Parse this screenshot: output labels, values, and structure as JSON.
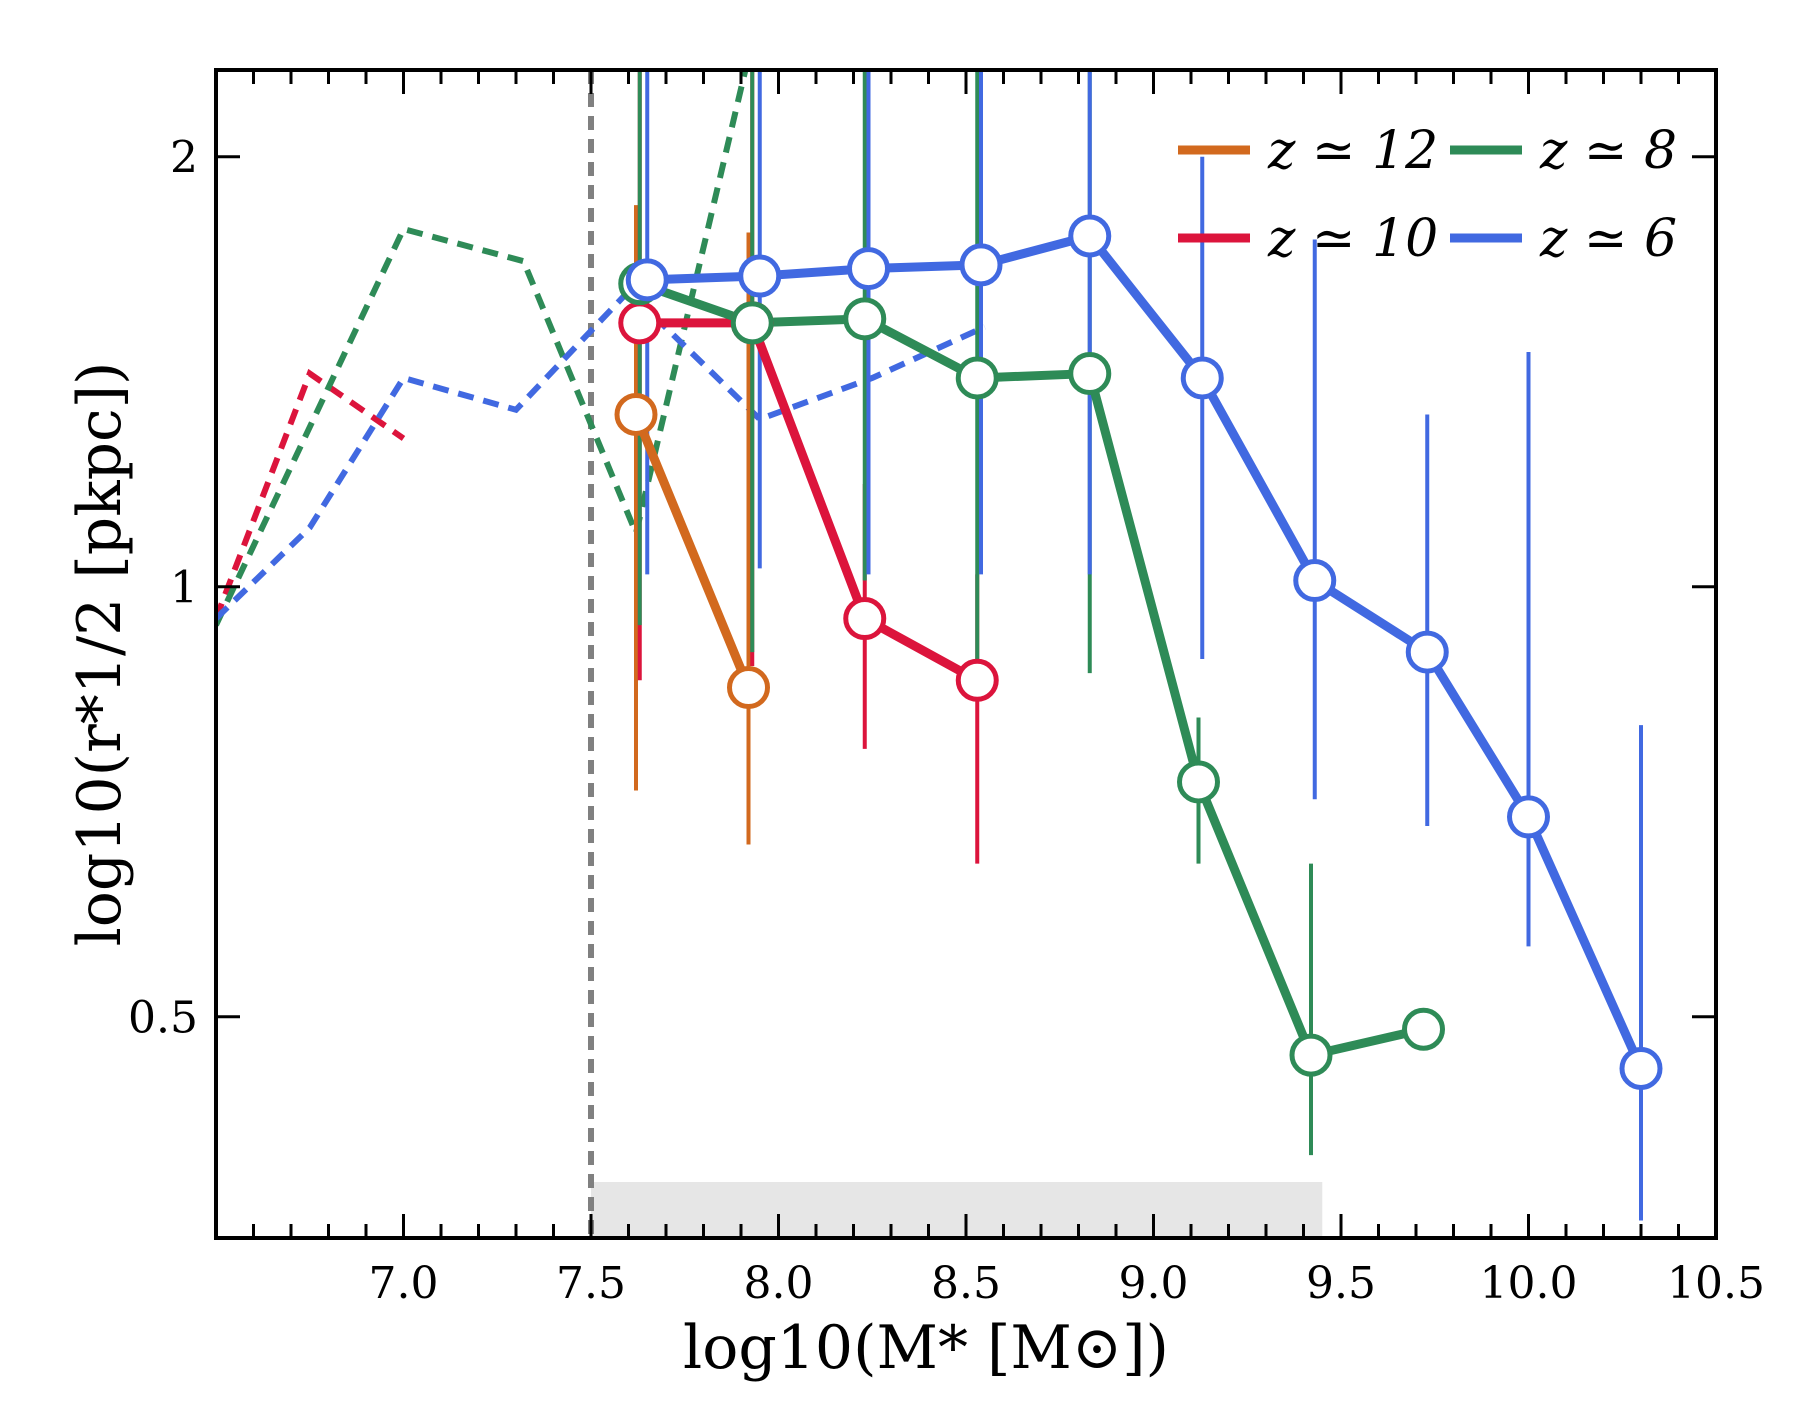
{
  "chart_data": {
    "type": "line",
    "xlabel": "log10(M* [M⊙])",
    "ylabel": "log10(r*1/2 [pkpc])",
    "xlim": [
      6.5,
      10.5
    ],
    "ylim": [
      0.35,
      2.3
    ],
    "y_scale": "log",
    "x_tick_labels": [
      "7.0",
      "7.5",
      "8.0",
      "8.5",
      "9.0",
      "9.5",
      "10.0",
      "10.5"
    ],
    "y_tick_labels": [
      "0.5",
      "1",
      "2"
    ],
    "resolution_limit_x": 7.5,
    "shaded_band": {
      "x_start": 7.5,
      "x_end": 9.45
    },
    "series": [
      {
        "name": "z ≃ 12",
        "color": "#d2691e",
        "x": [
          7.62,
          7.92
        ],
        "y": [
          1.32,
          0.85
        ],
        "yerr_low": [
          0.72,
          0.66
        ],
        "yerr_high": [
          1.85,
          1.77
        ],
        "dashed_x": [],
        "dashed_y": []
      },
      {
        "name": "z ≃ 10",
        "color": "#dc143c",
        "x": [
          7.63,
          7.93,
          8.23,
          8.53
        ],
        "y": [
          1.53,
          1.53,
          0.95,
          0.86
        ],
        "yerr_low": [
          0.86,
          0.88,
          0.77,
          0.64
        ],
        "yerr_high": [
          2.77,
          2.67,
          1.18,
          1.02
        ],
        "dashed_x": [
          6.5,
          6.75,
          7.0
        ],
        "dashed_y": [
          0.95,
          1.41,
          1.27
        ]
      },
      {
        "name": "z ≃ 8",
        "color": "#2e8b57",
        "x": [
          7.63,
          7.93,
          8.23,
          8.53,
          8.83,
          9.12,
          9.42,
          9.72
        ],
        "y": [
          1.63,
          1.53,
          1.54,
          1.4,
          1.41,
          0.73,
          0.47,
          0.49
        ],
        "yerr_low": [
          0.94,
          0.9,
          1.01,
          0.88,
          0.87,
          0.64,
          0.4,
          0.49
        ],
        "yerr_high": [
          2.52,
          2.44,
          3.84,
          2.46,
          2.49,
          0.81,
          0.64,
          0.49
        ],
        "dashed_x": [
          6.5,
          7.0,
          7.32,
          7.62,
          7.93
        ],
        "dashed_y": [
          0.94,
          1.78,
          1.69,
          1.09,
          2.41
        ]
      },
      {
        "name": "z ≃ 6",
        "color": "#4169e1",
        "x": [
          7.65,
          7.95,
          8.24,
          8.54,
          8.83,
          9.13,
          9.43,
          9.73,
          10.0,
          10.3
        ],
        "y": [
          1.64,
          1.65,
          1.67,
          1.68,
          1.76,
          1.4,
          1.01,
          0.9,
          0.69,
          0.46
        ],
        "yerr_low": [
          1.02,
          1.03,
          1.02,
          1.02,
          1.02,
          0.89,
          0.71,
          0.68,
          0.56,
          0.36
        ],
        "yerr_high": [
          2.49,
          2.56,
          3.82,
          3.34,
          4.1,
          2.0,
          1.75,
          1.32,
          1.46,
          0.8
        ],
        "dashed_x": [
          6.5,
          6.75,
          7.0,
          7.3,
          7.6,
          7.95,
          8.25,
          8.55
        ],
        "dashed_y": [
          0.95,
          1.1,
          1.4,
          1.33,
          1.61,
          1.31,
          1.4,
          1.52
        ]
      }
    ],
    "legend": {
      "placement": "top-right",
      "entries": [
        {
          "label": "z ≃ 12",
          "color": "#d2691e"
        },
        {
          "label": "z ≃ 8",
          "color": "#2e8b57"
        },
        {
          "label": "z ≃ 10",
          "color": "#dc143c"
        },
        {
          "label": "z ≃ 6",
          "color": "#4169e1"
        }
      ]
    },
    "colors": {
      "shade": "#e6e6e6",
      "limit_line": "#808080",
      "axis": "#000000"
    }
  }
}
